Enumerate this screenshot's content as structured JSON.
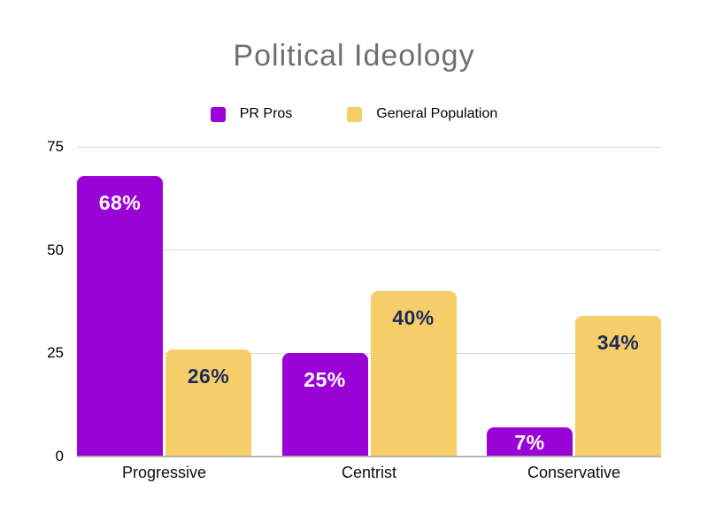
{
  "chart_data": {
    "type": "bar",
    "title": "Political Ideology",
    "categories": [
      "Progressive",
      "Centrist",
      "Conservative"
    ],
    "series": [
      {
        "name": "PR Pros",
        "color": "#9903d6",
        "label_color": "#ffffff",
        "values": [
          68,
          25,
          7
        ],
        "labels": [
          "68%",
          "25%",
          "7%"
        ]
      },
      {
        "name": "General Population",
        "color": "#f5cd69",
        "label_color": "#1e2a5a",
        "values": [
          26,
          40,
          34
        ],
        "labels": [
          "26%",
          "40%",
          "34%"
        ]
      }
    ],
    "xlabel": "",
    "ylabel": "",
    "ylim": [
      0,
      75
    ],
    "yticks": [
      0,
      25,
      50,
      75
    ],
    "ytick_labels": [
      "0",
      "25",
      "50",
      "75"
    ],
    "grid": true,
    "legend_position": "top"
  },
  "colors": {
    "background": "#ffffff",
    "title_text": "#6f6f6f",
    "axis_text": "#000000",
    "gridline": "#dadada",
    "baseline": "#b3b3b3"
  }
}
